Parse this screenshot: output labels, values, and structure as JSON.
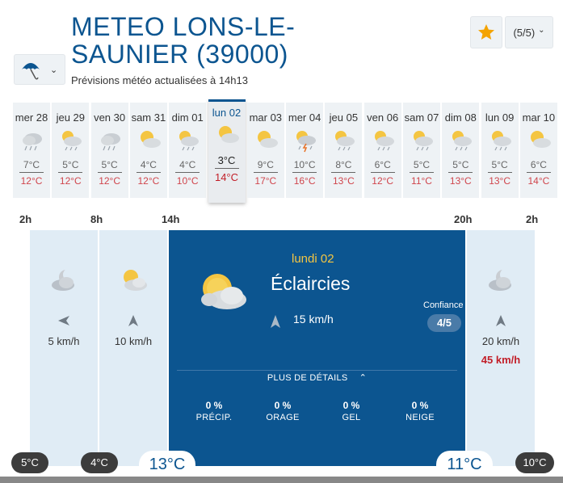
{
  "header": {
    "title": "METEO LONS-LE-SAUNIER (39000)",
    "subtitle": "Prévisions météo actualisées à 14h13",
    "rating": "(5/5)",
    "logo_icon": "umbrella-icon",
    "favorite_icon": "star-icon",
    "accent_color": "#0c5590",
    "star_color": "#f4a300"
  },
  "days": [
    {
      "name": "mer 28",
      "icon": "cloud-rain",
      "tmin": "7°C",
      "tmax": "12°C"
    },
    {
      "name": "jeu 29",
      "icon": "sun-cloud-rain",
      "tmin": "5°C",
      "tmax": "12°C"
    },
    {
      "name": "ven 30",
      "icon": "cloud-rain",
      "tmin": "5°C",
      "tmax": "12°C"
    },
    {
      "name": "sam 31",
      "icon": "sun-cloud",
      "tmin": "4°C",
      "tmax": "12°C"
    },
    {
      "name": "dim 01",
      "icon": "sun-cloud-rain",
      "tmin": "4°C",
      "tmax": "10°C"
    },
    {
      "name": "lun 02",
      "icon": "sun-cloud",
      "tmin": "3°C",
      "tmax": "14°C",
      "selected": true
    },
    {
      "name": "mar 03",
      "icon": "sun-cloud",
      "tmin": "9°C",
      "tmax": "17°C"
    },
    {
      "name": "mer 04",
      "icon": "storm",
      "tmin": "10°C",
      "tmax": "16°C"
    },
    {
      "name": "jeu 05",
      "icon": "sun-cloud-rain",
      "tmin": "8°C",
      "tmax": "13°C"
    },
    {
      "name": "ven 06",
      "icon": "sun-cloud-rain",
      "tmin": "6°C",
      "tmax": "12°C"
    },
    {
      "name": "sam 07",
      "icon": "sun-cloud-rain",
      "tmin": "5°C",
      "tmax": "11°C"
    },
    {
      "name": "dim 08",
      "icon": "sun-cloud-rain",
      "tmin": "5°C",
      "tmax": "13°C"
    },
    {
      "name": "lun 09",
      "icon": "sun-cloud-rain",
      "tmin": "5°C",
      "tmax": "13°C"
    },
    {
      "name": "mar 10",
      "icon": "sun-cloud",
      "tmin": "6°C",
      "tmax": "14°C"
    }
  ],
  "hours": [
    "2h",
    "8h",
    "14h",
    "20h",
    "2h"
  ],
  "periods": {
    "night1": {
      "icon": "moon-cloud",
      "wind": "5 km/h"
    },
    "morning": {
      "icon": "sun-cloud",
      "wind": "10 km/h"
    },
    "afternoon": {
      "day": "lundi 02",
      "condition": "Éclaircies",
      "icon": "sun-cloud",
      "wind": "15 km/h",
      "confidence_label": "Confiance",
      "confidence": "4/5",
      "more_details": "PLUS DE DÉTAILS",
      "stats": [
        {
          "value": "0 %",
          "label": "PRÉCIP."
        },
        {
          "value": "0 %",
          "label": "ORAGE"
        },
        {
          "value": "0 %",
          "label": "GEL"
        },
        {
          "value": "0 %",
          "label": "NEIGE"
        }
      ]
    },
    "night2": {
      "icon": "moon-cloud",
      "wind": "20 km/h",
      "gust": "45 km/h"
    }
  },
  "temps": {
    "t1": "5°C",
    "t2": "4°C",
    "t3": "13°C",
    "t4": "11°C",
    "t5": "10°C"
  }
}
